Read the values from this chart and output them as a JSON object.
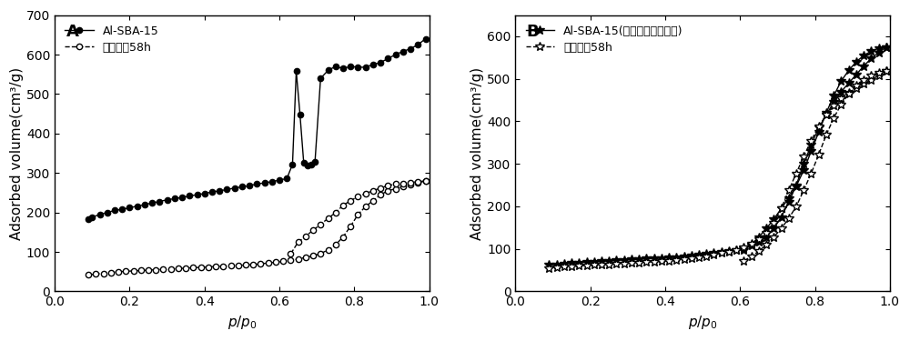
{
  "panel_A": {
    "label": "A",
    "series1_label": "Al-SBA-15",
    "series2_label": "水热处理58h",
    "series1_x": [
      0.09,
      0.1,
      0.12,
      0.14,
      0.16,
      0.18,
      0.2,
      0.22,
      0.24,
      0.26,
      0.28,
      0.3,
      0.32,
      0.34,
      0.36,
      0.38,
      0.4,
      0.42,
      0.44,
      0.46,
      0.48,
      0.5,
      0.52,
      0.54,
      0.56,
      0.58,
      0.6,
      0.62,
      0.635,
      0.645,
      0.655,
      0.665,
      0.675,
      0.685,
      0.695,
      0.71,
      0.73,
      0.75,
      0.77,
      0.79,
      0.81,
      0.83,
      0.85,
      0.87,
      0.89,
      0.91,
      0.93,
      0.95,
      0.97,
      0.99
    ],
    "series1_y": [
      182,
      188,
      195,
      200,
      205,
      208,
      212,
      216,
      220,
      224,
      228,
      232,
      235,
      238,
      242,
      245,
      248,
      252,
      255,
      258,
      262,
      265,
      268,
      272,
      275,
      278,
      282,
      286,
      322,
      558,
      448,
      325,
      320,
      322,
      328,
      540,
      560,
      570,
      565,
      570,
      568,
      568,
      575,
      580,
      590,
      600,
      608,
      615,
      625,
      640
    ],
    "series2_adsorb_x": [
      0.09,
      0.11,
      0.13,
      0.15,
      0.17,
      0.19,
      0.21,
      0.23,
      0.25,
      0.27,
      0.29,
      0.31,
      0.33,
      0.35,
      0.37,
      0.39,
      0.41,
      0.43,
      0.45,
      0.47,
      0.49,
      0.51,
      0.53,
      0.55,
      0.57,
      0.59,
      0.61,
      0.63,
      0.65,
      0.67,
      0.69,
      0.71,
      0.73,
      0.75,
      0.77,
      0.79,
      0.81,
      0.83,
      0.85,
      0.87,
      0.89,
      0.91,
      0.93,
      0.95,
      0.97,
      0.99
    ],
    "series2_adsorb_y": [
      42,
      44,
      46,
      48,
      50,
      51,
      52,
      53,
      54,
      55,
      56,
      57,
      58,
      59,
      60,
      61,
      62,
      63,
      64,
      65,
      66,
      67,
      68,
      70,
      72,
      74,
      76,
      79,
      82,
      86,
      90,
      96,
      105,
      118,
      138,
      165,
      195,
      215,
      230,
      245,
      255,
      260,
      265,
      270,
      275,
      280
    ],
    "series2_desorb_x": [
      0.99,
      0.97,
      0.95,
      0.93,
      0.91,
      0.89,
      0.87,
      0.85,
      0.83,
      0.81,
      0.79,
      0.77,
      0.75,
      0.73,
      0.71,
      0.69,
      0.67,
      0.65,
      0.63
    ],
    "series2_desorb_y": [
      280,
      278,
      276,
      274,
      272,
      268,
      262,
      255,
      248,
      240,
      230,
      218,
      200,
      185,
      170,
      155,
      140,
      125,
      95
    ],
    "ylabel": "Adsorbed volume(cm³/g)",
    "xlabel_math": "$p/p_0$",
    "ylim": [
      0,
      700
    ],
    "xlim": [
      0.0,
      1.0
    ],
    "yticks": [
      0,
      100,
      200,
      300,
      400,
      500,
      600,
      700
    ],
    "xticks": [
      0.0,
      0.2,
      0.4,
      0.6,
      0.8,
      1.0
    ]
  },
  "panel_B": {
    "label": "B",
    "series1_label": "Al-SBA-15(加氟碳表面活性剂)",
    "series2_label": "水热处理58h",
    "series1_adsorb_x": [
      0.09,
      0.11,
      0.13,
      0.15,
      0.17,
      0.19,
      0.21,
      0.23,
      0.25,
      0.27,
      0.29,
      0.31,
      0.33,
      0.35,
      0.37,
      0.39,
      0.41,
      0.43,
      0.45,
      0.47,
      0.49,
      0.51,
      0.53,
      0.55,
      0.57,
      0.59,
      0.61,
      0.63,
      0.65,
      0.67,
      0.69,
      0.71,
      0.73,
      0.75,
      0.77,
      0.79,
      0.81,
      0.83,
      0.85,
      0.87,
      0.89,
      0.91,
      0.93,
      0.95,
      0.97,
      0.99
    ],
    "series1_adsorb_y": [
      62,
      64,
      66,
      67,
      68,
      69,
      70,
      71,
      72,
      73,
      74,
      75,
      76,
      77,
      78,
      79,
      80,
      81,
      82,
      84,
      86,
      88,
      90,
      92,
      95,
      98,
      102,
      108,
      116,
      128,
      148,
      175,
      210,
      250,
      300,
      345,
      385,
      415,
      445,
      470,
      490,
      510,
      530,
      548,
      562,
      575
    ],
    "series1_desorb_x": [
      0.99,
      0.97,
      0.95,
      0.93,
      0.91,
      0.89,
      0.87,
      0.85,
      0.83,
      0.81,
      0.79,
      0.77,
      0.75,
      0.73,
      0.71,
      0.69,
      0.67,
      0.65,
      0.63,
      0.61
    ],
    "series1_desorb_y": [
      575,
      572,
      565,
      555,
      540,
      520,
      495,
      460,
      420,
      375,
      330,
      285,
      248,
      220,
      195,
      170,
      148,
      128,
      110,
      98
    ],
    "series2_adsorb_x": [
      0.09,
      0.11,
      0.13,
      0.15,
      0.17,
      0.19,
      0.21,
      0.23,
      0.25,
      0.27,
      0.29,
      0.31,
      0.33,
      0.35,
      0.37,
      0.39,
      0.41,
      0.43,
      0.45,
      0.47,
      0.49,
      0.51,
      0.53,
      0.55,
      0.57,
      0.59,
      0.61,
      0.63,
      0.65,
      0.67,
      0.69,
      0.71,
      0.73,
      0.75,
      0.77,
      0.79,
      0.81,
      0.83,
      0.85,
      0.87,
      0.89,
      0.91,
      0.93,
      0.95,
      0.97,
      0.99
    ],
    "series2_adsorb_y": [
      55,
      57,
      58,
      59,
      60,
      61,
      62,
      63,
      64,
      65,
      66,
      67,
      68,
      69,
      70,
      71,
      72,
      74,
      76,
      78,
      80,
      83,
      86,
      90,
      94,
      98,
      104,
      112,
      122,
      138,
      162,
      195,
      238,
      278,
      318,
      355,
      388,
      415,
      438,
      455,
      468,
      478,
      488,
      498,
      508,
      518
    ],
    "series2_desorb_x": [
      0.99,
      0.97,
      0.95,
      0.93,
      0.91,
      0.89,
      0.87,
      0.85,
      0.83,
      0.81,
      0.79,
      0.77,
      0.75,
      0.73,
      0.71,
      0.69,
      0.67,
      0.65,
      0.63,
      0.61
    ],
    "series2_desorb_y": [
      518,
      515,
      508,
      498,
      485,
      465,
      440,
      408,
      368,
      322,
      278,
      238,
      200,
      172,
      148,
      128,
      110,
      95,
      82,
      72
    ],
    "ylabel": "Adsorbed volume(cm³/g)",
    "xlabel_math": "$p/p_0$",
    "ylim": [
      0,
      650
    ],
    "xlim": [
      0.0,
      1.0
    ],
    "yticks": [
      0,
      100,
      200,
      300,
      400,
      500,
      600
    ],
    "xticks": [
      0.0,
      0.2,
      0.4,
      0.6,
      0.8,
      1.0
    ]
  },
  "bg_color": "#ffffff",
  "font_size_label": 11,
  "font_size_tick": 10,
  "font_size_panel": 13,
  "font_size_legend": 9
}
